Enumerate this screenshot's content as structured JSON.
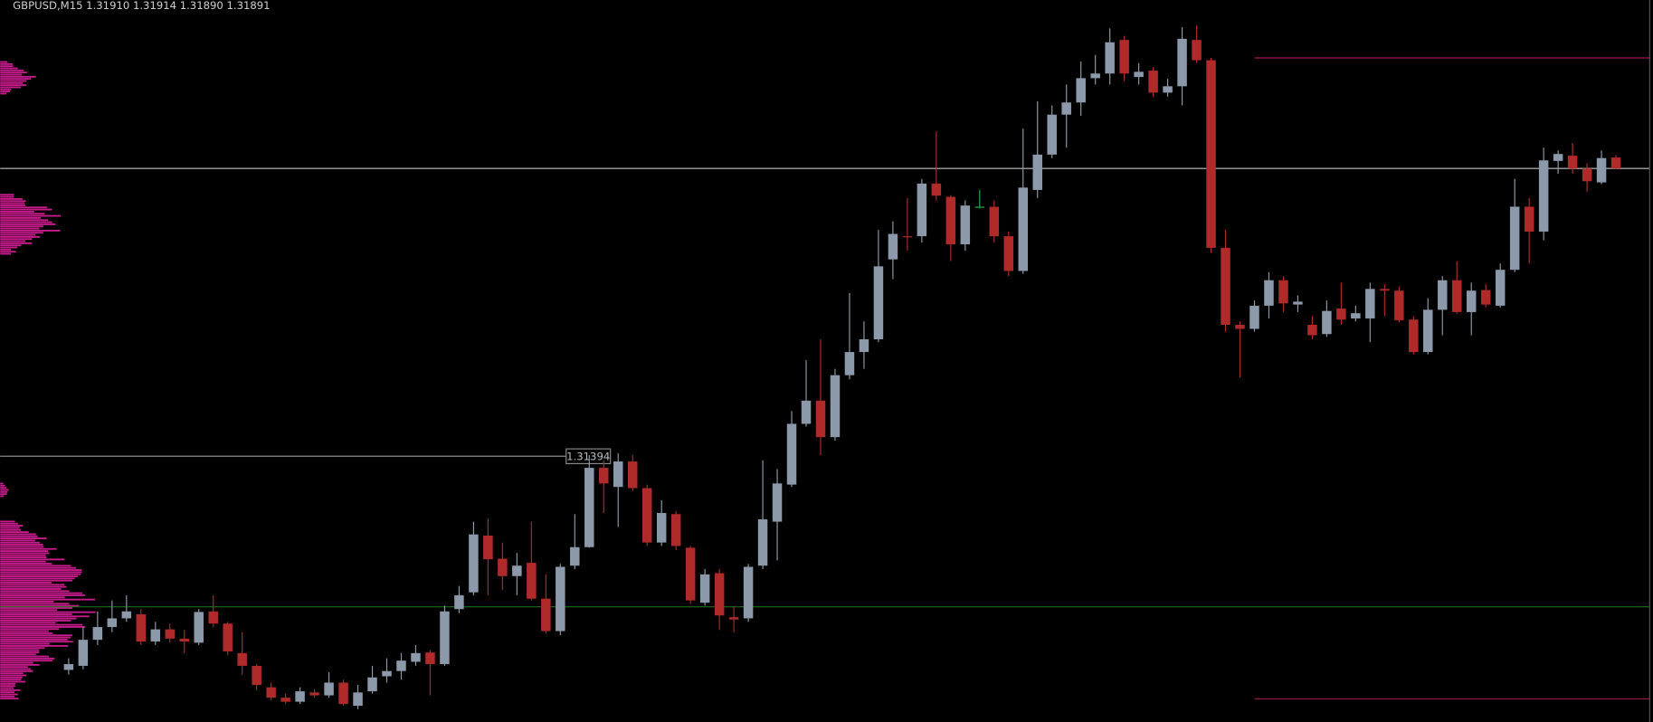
{
  "chart_data": {
    "type": "candlestick",
    "title": "GBPUSD,M15  1.31910 1.31914 1.31890 1.31891",
    "ylim": [
      1.30935,
      1.32182
    ],
    "up_color": "#8c99ab",
    "down_color": "#b02a2a",
    "doji_color": "#22b14c",
    "open": [
      1.31025,
      1.31032,
      1.31077,
      1.31099,
      1.31114,
      1.31121,
      1.31074,
      1.31095,
      1.31079,
      1.31072,
      1.31126,
      1.31105,
      1.31054,
      1.31032,
      1.30995,
      1.30977,
      1.3097,
      1.30986,
      1.30981,
      1.31003,
      1.30963,
      1.30988,
      1.31014,
      1.31023,
      1.31039,
      1.31055,
      1.31035,
      1.3113,
      1.31159,
      1.31257,
      1.31217,
      1.31187,
      1.3121,
      1.31148,
      1.31092,
      1.31205,
      1.31237,
      1.31374,
      1.31341,
      1.31385,
      1.31339,
      1.31245,
      1.31294,
      1.31236,
      1.31141,
      1.31192,
      1.31116,
      1.31114,
      1.31205,
      1.31281,
      1.31345,
      1.3145,
      1.3149,
      1.31427,
      1.31534,
      1.31574,
      1.31596,
      1.31734,
      1.31774,
      1.31774,
      1.31865,
      1.31842,
      1.3176,
      1.31825,
      1.31825,
      1.31774,
      1.31714,
      1.31854,
      1.31915,
      1.31984,
      1.32005,
      1.32047,
      1.32055,
      1.32113,
      1.32049,
      1.3206,
      1.32022,
      1.32033,
      1.32113,
      1.32078,
      1.31754,
      1.31621,
      1.31614,
      1.31654,
      1.31698,
      1.31656,
      1.31621,
      1.31605,
      1.31649,
      1.31632,
      1.31632,
      1.31683,
      1.3168,
      1.3163,
      1.31574,
      1.31647,
      1.31698,
      1.31643,
      1.31681,
      1.31654,
      1.31716,
      1.31825,
      1.31782,
      1.31904,
      1.31913,
      1.31891,
      1.31867,
      1.3191
    ],
    "high": [
      1.31045,
      1.31099,
      1.31126,
      1.31145,
      1.31154,
      1.3113,
      1.31108,
      1.31105,
      1.31094,
      1.3113,
      1.31154,
      1.31108,
      1.3109,
      1.31035,
      1.31003,
      1.30984,
      1.30995,
      1.30992,
      1.31021,
      1.31008,
      1.30999,
      1.31032,
      1.31045,
      1.31054,
      1.31068,
      1.31059,
      1.31136,
      1.3117,
      1.31281,
      1.31287,
      1.31245,
      1.31227,
      1.31281,
      1.3119,
      1.31208,
      1.31294,
      1.31396,
      1.31387,
      1.31399,
      1.31396,
      1.31345,
      1.31318,
      1.31299,
      1.31239,
      1.31199,
      1.31199,
      1.31134,
      1.31208,
      1.31387,
      1.31372,
      1.31472,
      1.3156,
      1.31596,
      1.31545,
      1.31676,
      1.31627,
      1.31785,
      1.318,
      1.3184,
      1.31873,
      1.31955,
      1.31845,
      1.31836,
      1.31854,
      1.31836,
      1.31782,
      1.3196,
      1.32007,
      1.32,
      1.32036,
      1.32076,
      1.32087,
      1.32133,
      1.3212,
      1.32073,
      1.32066,
      1.32046,
      1.32135,
      1.32138,
      1.32082,
      1.31785,
      1.31627,
      1.31663,
      1.31712,
      1.31705,
      1.31672,
      1.31636,
      1.31663,
      1.31694,
      1.31654,
      1.31694,
      1.31691,
      1.31687,
      1.31636,
      1.31667,
      1.31705,
      1.31731,
      1.31694,
      1.31691,
      1.31727,
      1.31873,
      1.3184,
      1.31927,
      1.31922,
      1.31935,
      1.319,
      1.31922,
      1.31914
    ],
    "low": [
      1.31017,
      1.31026,
      1.31068,
      1.3109,
      1.31108,
      1.31068,
      1.31068,
      1.31072,
      1.31054,
      1.31068,
      1.31099,
      1.3105,
      1.31017,
      1.3099,
      1.30972,
      1.30966,
      1.30966,
      1.30977,
      1.30977,
      1.30963,
      1.30957,
      1.30984,
      1.31003,
      1.31008,
      1.31032,
      1.30981,
      1.31032,
      1.31123,
      1.31154,
      1.31154,
      1.31163,
      1.31154,
      1.31145,
      1.31088,
      1.31085,
      1.31199,
      1.31236,
      1.31296,
      1.31272,
      1.31334,
      1.31239,
      1.31239,
      1.31232,
      1.31139,
      1.31136,
      1.31094,
      1.3109,
      1.31108,
      1.31199,
      1.31214,
      1.31341,
      1.31445,
      1.31396,
      1.31421,
      1.31527,
      1.31545,
      1.31591,
      1.317,
      1.31749,
      1.31763,
      1.31836,
      1.31731,
      1.31749,
      1.31822,
      1.31763,
      1.31705,
      1.31709,
      1.3184,
      1.31909,
      1.31927,
      1.31982,
      1.32036,
      1.32036,
      1.32042,
      1.32036,
      1.32015,
      1.32015,
      1.32,
      1.32073,
      1.31745,
      1.31609,
      1.3153,
      1.31609,
      1.31632,
      1.31643,
      1.31643,
      1.31596,
      1.316,
      1.31621,
      1.31627,
      1.31591,
      1.31636,
      1.31625,
      1.3157,
      1.3157,
      1.31603,
      1.3164,
      1.31603,
      1.31651,
      1.31651,
      1.31712,
      1.31727,
      1.31767,
      1.31882,
      1.31882,
      1.31851,
      1.31864,
      1.3189
    ],
    "close": [
      1.31035,
      1.31077,
      1.31099,
      1.31114,
      1.31126,
      1.31074,
      1.31095,
      1.31079,
      1.31074,
      1.31125,
      1.31105,
      1.31057,
      1.31032,
      1.30999,
      1.30977,
      1.3097,
      1.30988,
      1.30981,
      1.31003,
      1.30966,
      1.30986,
      1.31012,
      1.31023,
      1.31041,
      1.31054,
      1.31035,
      1.31126,
      1.31154,
      1.31259,
      1.31216,
      1.31187,
      1.31205,
      1.31148,
      1.31092,
      1.31203,
      1.31237,
      1.31374,
      1.31347,
      1.31385,
      1.31339,
      1.31245,
      1.31296,
      1.31239,
      1.31145,
      1.3119,
      1.31119,
      1.31112,
      1.31203,
      1.31285,
      1.31347,
      1.3145,
      1.3149,
      1.31427,
      1.31534,
      1.31574,
      1.31596,
      1.31722,
      1.31778,
      1.31773,
      1.31865,
      1.31844,
      1.3176,
      1.31827,
      1.31825,
      1.31774,
      1.31714,
      1.31858,
      1.31915,
      1.31984,
      1.32005,
      1.32047,
      1.32055,
      1.32109,
      1.32055,
      1.32058,
      1.32022,
      1.32033,
      1.32115,
      1.32078,
      1.31754,
      1.31621,
      1.31614,
      1.31654,
      1.31698,
      1.31658,
      1.31661,
      1.31603,
      1.31645,
      1.3163,
      1.31641,
      1.31683,
      1.3168,
      1.31629,
      1.31574,
      1.31647,
      1.31698,
      1.31643,
      1.3168,
      1.31656,
      1.31716,
      1.31825,
      1.31782,
      1.31905,
      1.31916,
      1.31891,
      1.31869,
      1.31909,
      1.31891
    ],
    "lines": [
      {
        "value": 1.31891,
        "color": "#c4c4c4"
      },
      {
        "value": 1.31394,
        "color": "#8a8a8a"
      },
      {
        "value": 1.31134,
        "color": "#1e6b1e"
      },
      {
        "value": 1.32082,
        "color": "#9e1650"
      },
      {
        "value": 1.30975,
        "color": "#9e1650"
      }
    ]
  }
}
